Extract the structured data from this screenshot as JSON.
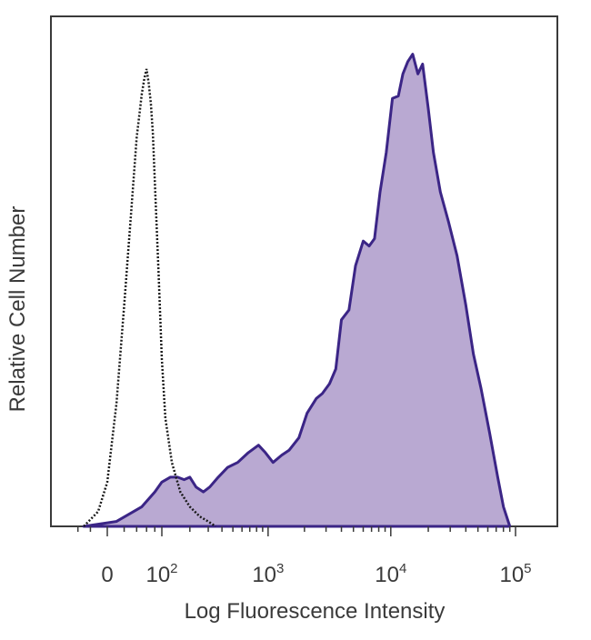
{
  "chart_data": {
    "type": "area",
    "xlabel": "Log Fluorescence Intensity",
    "ylabel": "Relative Cell Number",
    "x_scale": "biexponential",
    "xlim": [
      -60,
      150000
    ],
    "ylim": [
      0,
      100
    ],
    "grid": false,
    "x_ticks": [
      {
        "value": 0,
        "base": "0",
        "exp": ""
      },
      {
        "value": 100,
        "base": "10",
        "exp": "2"
      },
      {
        "value": 1000,
        "base": "10",
        "exp": "3"
      },
      {
        "value": 10000,
        "base": "10",
        "exp": "4"
      },
      {
        "value": 100000,
        "base": "10",
        "exp": "5"
      }
    ],
    "series": [
      {
        "style": "dotted outline (control)",
        "color": "#1a1a1a",
        "fill": "none",
        "x": [
          -30,
          -10,
          0,
          10,
          20,
          30,
          40,
          50,
          55,
          60,
          65,
          70,
          75,
          80,
          90,
          100,
          110,
          130,
          160,
          200,
          250,
          300,
          350
        ],
        "y": [
          0,
          3,
          9,
          25,
          45,
          63,
          79,
          88,
          91,
          93,
          90,
          86,
          80,
          70,
          52,
          34,
          22,
          13,
          7,
          4,
          2,
          1,
          0
        ]
      },
      {
        "style": "filled (stained)",
        "color": "#3b2586",
        "fill": "#b9a9d2",
        "x": [
          -30,
          10,
          50,
          80,
          100,
          125,
          150,
          175,
          200,
          230,
          270,
          310,
          370,
          450,
          550,
          680,
          830,
          950,
          1100,
          1300,
          1500,
          1800,
          2100,
          2500,
          2800,
          3200,
          3600,
          4000,
          4600,
          5200,
          6000,
          6700,
          7400,
          8200,
          9200,
          10300,
          11500,
          12500,
          13700,
          15000,
          16500,
          18000,
          20000,
          22000,
          25000,
          29000,
          34000,
          40000,
          46000,
          53000,
          62000,
          72000,
          80000,
          90000
        ],
        "y": [
          0,
          1,
          4,
          7,
          9,
          10,
          10,
          9.5,
          10,
          8,
          7,
          8,
          10,
          12,
          13,
          15,
          16.5,
          15,
          13,
          14.5,
          15.5,
          18,
          23,
          26,
          27,
          29,
          32,
          42,
          44,
          53,
          58,
          57,
          58.5,
          68,
          76,
          87,
          87.5,
          92,
          94.5,
          96,
          92,
          94,
          85,
          76,
          68,
          62,
          55,
          45,
          35,
          28,
          19,
          10,
          4,
          0
        ]
      }
    ]
  }
}
